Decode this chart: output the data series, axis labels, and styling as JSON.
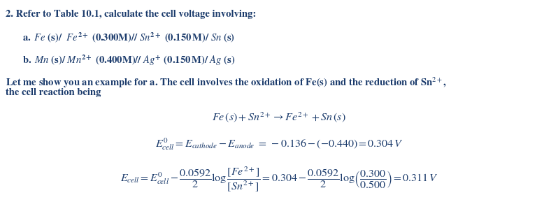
{
  "bg_color": "#ffffff",
  "text_color": "#1a3a6b",
  "fig_width": 7.98,
  "fig_height": 3.09,
  "dpi": 100
}
